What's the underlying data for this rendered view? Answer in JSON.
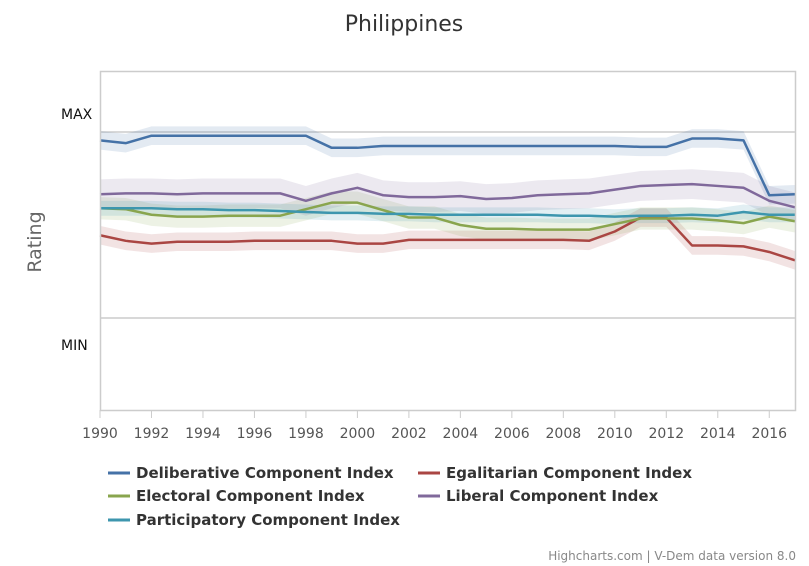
{
  "chart_data": {
    "type": "line",
    "title": "Philippines",
    "ylabel": "Rating",
    "y_categories": [
      "MAX",
      "MIN"
    ],
    "xlim": [
      1990,
      2017
    ],
    "x_ticks": [
      1990,
      1992,
      1994,
      1996,
      1998,
      2000,
      2002,
      2004,
      2006,
      2008,
      2010,
      2012,
      2014,
      2016
    ],
    "ylim": [
      0,
      1
    ],
    "grid": true,
    "legend": "bottom",
    "x": [
      1990,
      1991,
      1992,
      1993,
      1994,
      1995,
      1996,
      1997,
      1998,
      1999,
      2000,
      2001,
      2002,
      2003,
      2004,
      2005,
      2006,
      2007,
      2008,
      2009,
      2010,
      2011,
      2012,
      2013,
      2014,
      2015,
      2016,
      2017
    ],
    "series": [
      {
        "name": "Deliberative Component Index",
        "color": "#4572a7",
        "values": [
          0.955,
          0.94,
          0.98,
          0.98,
          0.98,
          0.98,
          0.98,
          0.98,
          0.98,
          0.915,
          0.915,
          0.925,
          0.925,
          0.925,
          0.925,
          0.925,
          0.925,
          0.925,
          0.925,
          0.925,
          0.925,
          0.92,
          0.92,
          0.965,
          0.965,
          0.955,
          0.66,
          0.665
        ]
      },
      {
        "name": "Egalitarian Component Index",
        "color": "#aa4643",
        "values": [
          0.445,
          0.415,
          0.4,
          0.41,
          0.41,
          0.41,
          0.415,
          0.415,
          0.415,
          0.415,
          0.4,
          0.4,
          0.42,
          0.42,
          0.42,
          0.42,
          0.42,
          0.42,
          0.42,
          0.415,
          0.465,
          0.54,
          0.54,
          0.39,
          0.39,
          0.385,
          0.355,
          0.31
        ]
      },
      {
        "name": "Electoral Component Index",
        "color": "#89a54e",
        "values": [
          0.59,
          0.585,
          0.555,
          0.545,
          0.545,
          0.55,
          0.55,
          0.55,
          0.585,
          0.62,
          0.62,
          0.58,
          0.54,
          0.54,
          0.5,
          0.48,
          0.48,
          0.475,
          0.475,
          0.475,
          0.505,
          0.535,
          0.535,
          0.535,
          0.525,
          0.51,
          0.545,
          0.52
        ]
      },
      {
        "name": "Liberal Component Index",
        "color": "#80699b",
        "values": [
          0.665,
          0.67,
          0.67,
          0.665,
          0.67,
          0.67,
          0.67,
          0.67,
          0.63,
          0.67,
          0.7,
          0.66,
          0.65,
          0.65,
          0.655,
          0.64,
          0.645,
          0.66,
          0.665,
          0.67,
          0.69,
          0.71,
          0.715,
          0.72,
          0.71,
          0.7,
          0.63,
          0.595
        ]
      },
      {
        "name": "Participatory Component Index",
        "color": "#3d96ae",
        "values": [
          0.59,
          0.59,
          0.59,
          0.585,
          0.585,
          0.58,
          0.58,
          0.575,
          0.57,
          0.565,
          0.565,
          0.56,
          0.56,
          0.555,
          0.555,
          0.555,
          0.555,
          0.555,
          0.55,
          0.55,
          0.545,
          0.55,
          0.55,
          0.555,
          0.55,
          0.57,
          0.555,
          0.555
        ]
      }
    ]
  },
  "credits": "Highcharts.com | V-Dem data version 8.0"
}
